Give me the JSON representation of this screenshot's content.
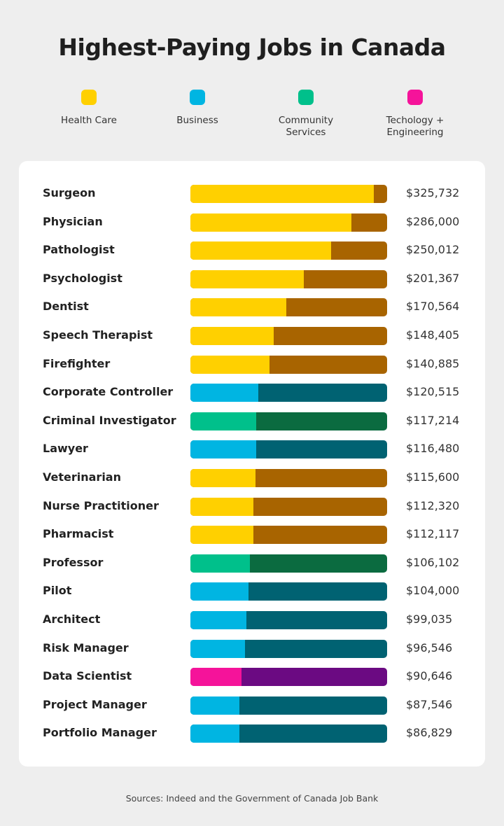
{
  "chart_data": {
    "type": "bar",
    "orientation": "horizontal",
    "title": "Highest-Paying Jobs in Canada",
    "scale_max": 350000,
    "legend": [
      {
        "key": "health",
        "label": "Health Care",
        "color": "#FFD000",
        "track_color": "#A86400"
      },
      {
        "key": "business",
        "label": "Business",
        "color": "#00B5E2",
        "track_color": "#006272"
      },
      {
        "key": "community",
        "label": "Community Services",
        "color": "#00C08B",
        "track_color": "#0B6B40"
      },
      {
        "key": "tech",
        "label": "Techology + Engineering",
        "color": "#F5139A",
        "track_color": "#6B0A82"
      }
    ],
    "rows": [
      {
        "job": "Surgeon",
        "value": 325732,
        "value_label": "$325,732",
        "category": "health"
      },
      {
        "job": "Physician",
        "value": 286000,
        "value_label": "$286,000",
        "category": "health"
      },
      {
        "job": "Pathologist",
        "value": 250012,
        "value_label": "$250,012",
        "category": "health"
      },
      {
        "job": "Psychologist",
        "value": 201367,
        "value_label": "$201,367",
        "category": "health"
      },
      {
        "job": "Dentist",
        "value": 170564,
        "value_label": "$170,564",
        "category": "health"
      },
      {
        "job": "Speech Therapist",
        "value": 148405,
        "value_label": "$148,405",
        "category": "health"
      },
      {
        "job": "Firefighter",
        "value": 140885,
        "value_label": "$140,885",
        "category": "health"
      },
      {
        "job": "Corporate Controller",
        "value": 120515,
        "value_label": "$120,515",
        "category": "business"
      },
      {
        "job": "Criminal Investigator",
        "value": 117214,
        "value_label": "$117,214",
        "category": "community"
      },
      {
        "job": "Lawyer",
        "value": 116480,
        "value_label": "$116,480",
        "category": "business"
      },
      {
        "job": "Veterinarian",
        "value": 115600,
        "value_label": "$115,600",
        "category": "health"
      },
      {
        "job": "Nurse Practitioner",
        "value": 112320,
        "value_label": "$112,320",
        "category": "health"
      },
      {
        "job": "Pharmacist",
        "value": 112117,
        "value_label": "$112,117",
        "category": "health"
      },
      {
        "job": "Professor",
        "value": 106102,
        "value_label": "$106,102",
        "category": "community"
      },
      {
        "job": "Pilot",
        "value": 104000,
        "value_label": "$104,000",
        "category": "business"
      },
      {
        "job": "Architect",
        "value": 99035,
        "value_label": "$99,035",
        "category": "business"
      },
      {
        "job": "Risk Manager",
        "value": 96546,
        "value_label": "$96,546",
        "category": "business"
      },
      {
        "job": "Data Scientist",
        "value": 90646,
        "value_label": "$90,646",
        "category": "tech"
      },
      {
        "job": "Project Manager",
        "value": 87546,
        "value_label": "$87,546",
        "category": "business"
      },
      {
        "job": "Portfolio Manager",
        "value": 86829,
        "value_label": "$86,829",
        "category": "business"
      }
    ],
    "source": "Sources: Indeed and the Government of Canada Job Bank"
  }
}
